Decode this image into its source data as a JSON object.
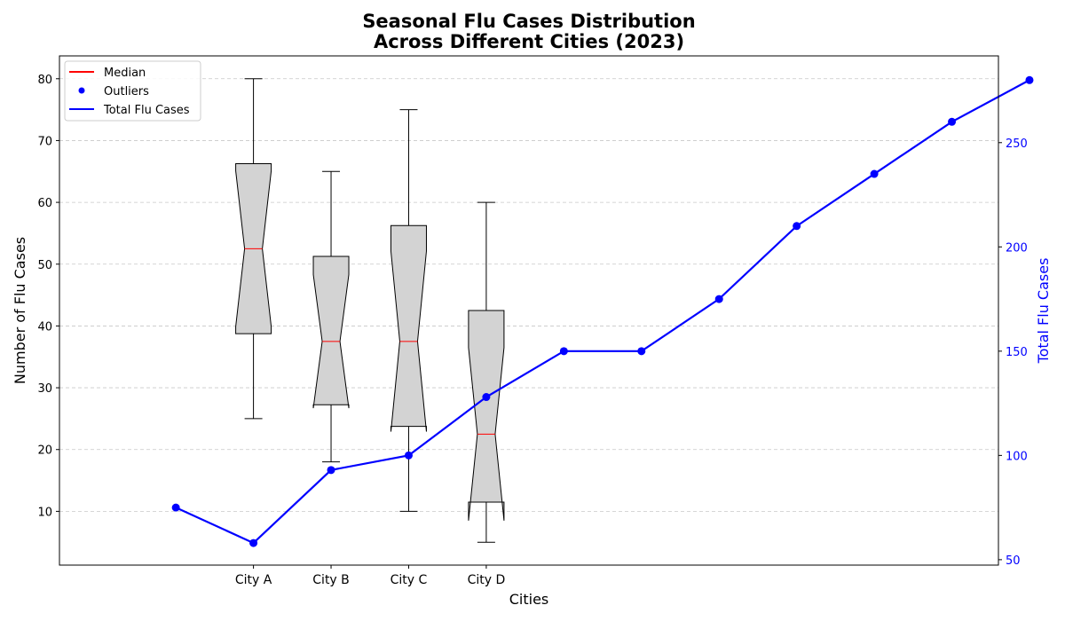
{
  "chart_data": {
    "type": "box",
    "title": "Seasonal Flu Cases Distribution\nAcross Different Cities (2023)",
    "xlabel": "Cities",
    "ylabel": "Number of Flu Cases",
    "y2label": "Total Flu Cases",
    "categories": [
      "City A",
      "City B",
      "City C",
      "City D"
    ],
    "ylim": [
      1.3,
      83.7
    ],
    "yticks": [
      10,
      20,
      30,
      40,
      50,
      60,
      70,
      80
    ],
    "y2lim": [
      47.4,
      291.6
    ],
    "y2ticks": [
      50,
      100,
      150,
      200,
      250
    ],
    "xlim": [
      -1.5,
      10.6
    ],
    "grid": true,
    "legend_position": "top-left",
    "boxes": [
      {
        "name": "City A",
        "x": 1,
        "whisker_low": 25,
        "q1": 38.75,
        "median": 52.5,
        "q3": 66.25,
        "whisker_high": 80,
        "notch_low": 39.9,
        "notch_high": 65.1
      },
      {
        "name": "City B",
        "x": 2,
        "whisker_low": 18,
        "q1": 27.25,
        "median": 37.5,
        "q3": 51.25,
        "whisker_high": 65,
        "notch_low": 26.7,
        "notch_high": 48.3
      },
      {
        "name": "City C",
        "x": 3,
        "whisker_low": 10,
        "q1": 23.75,
        "median": 37.5,
        "q3": 56.25,
        "whisker_high": 75,
        "notch_low": 22.9,
        "notch_high": 52.1
      },
      {
        "name": "City D",
        "x": 4,
        "whisker_low": 5,
        "q1": 11.5,
        "median": 22.5,
        "q3": 42.5,
        "whisker_high": 60,
        "notch_low": 8.5,
        "notch_high": 36.5
      }
    ],
    "line": {
      "name": "Total Flu Cases",
      "x": [
        0,
        1,
        2,
        3,
        4,
        5,
        6,
        7,
        8,
        9,
        10,
        11
      ],
      "values": [
        75,
        58,
        93,
        100,
        128,
        150,
        150,
        175,
        210,
        235,
        260,
        280
      ]
    },
    "legend": [
      {
        "label": "Median",
        "kind": "line",
        "color": "#ff0000"
      },
      {
        "label": "Outliers",
        "kind": "marker",
        "color": "#0000ff"
      },
      {
        "label": "Total Flu Cases",
        "kind": "line",
        "color": "#0000ff"
      }
    ],
    "colors": {
      "box_fill": "#d3d3d3",
      "median": "#ff0000",
      "line": "#0000ff",
      "secondary_axis": "#0000ff",
      "grid": "#c8c8c8"
    }
  }
}
